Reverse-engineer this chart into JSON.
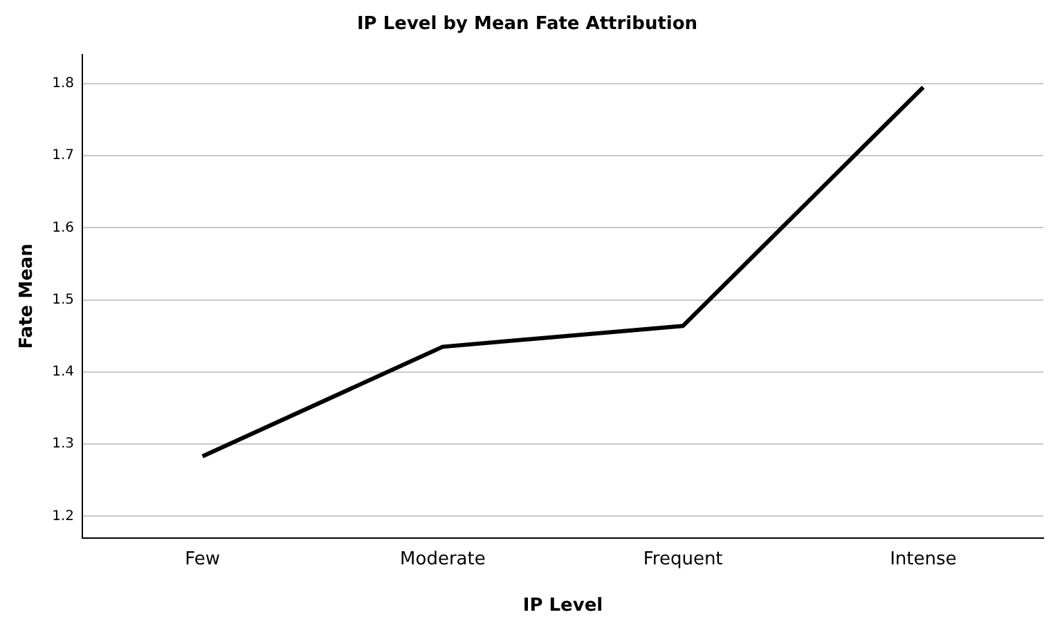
{
  "chart_data": {
    "type": "line",
    "title": "IP Level by Mean Fate Attribution",
    "xlabel": "IP Level",
    "ylabel": "Fate Mean",
    "categories": [
      "Few",
      "Moderate",
      "Frequent",
      "Intense"
    ],
    "series": [
      {
        "color": "#000000",
        "values": [
          1.283,
          1.435,
          1.464,
          1.795
        ]
      }
    ],
    "ylim": [
      1.17,
      1.84
    ],
    "yticks": [
      1.2,
      1.3,
      1.4,
      1.5,
      1.6,
      1.7,
      1.8
    ],
    "grid": "y",
    "legend": false,
    "marker": "none",
    "line_style": "solid"
  }
}
